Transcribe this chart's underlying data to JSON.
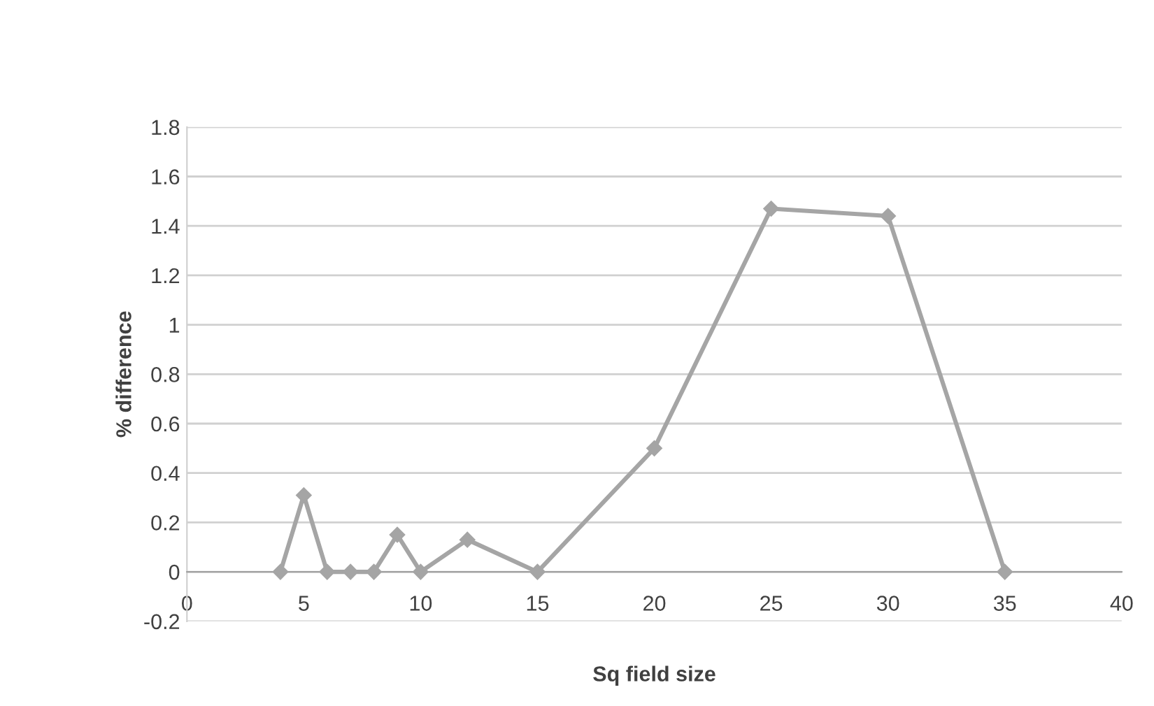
{
  "chart_data": {
    "type": "line",
    "xlabel": "Sq field size",
    "ylabel": "% difference",
    "series": [
      {
        "color": "#a5a5a5",
        "x": [
          4,
          5,
          6,
          7,
          8,
          9,
          10,
          12,
          15,
          20,
          25,
          30,
          35
        ],
        "values": [
          0,
          0.31,
          0,
          0,
          0,
          0.15,
          0,
          0.13,
          0,
          0.5,
          1.47,
          1.44,
          0
        ]
      }
    ],
    "xlim": [
      0,
      40
    ],
    "xticks": [
      0,
      5,
      10,
      15,
      20,
      25,
      30,
      35,
      40
    ],
    "ylim": [
      -0.2,
      1.8
    ],
    "yticks": [
      -0.2,
      0,
      0.2,
      0.4,
      0.6,
      0.8,
      1,
      1.2,
      1.4,
      1.6,
      1.8
    ],
    "grid": "y",
    "marker": "diamond",
    "line_style": "solid",
    "legend": false
  }
}
